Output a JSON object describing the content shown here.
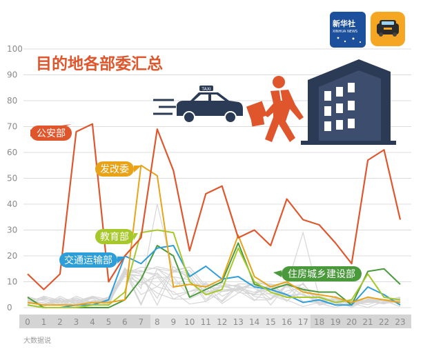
{
  "chart_data": {
    "type": "line",
    "title": "目的地各部委汇总",
    "x": [
      "0",
      "1",
      "2",
      "3",
      "4",
      "5",
      "6",
      "7",
      "8",
      "9",
      "10",
      "11",
      "12",
      "13",
      "14",
      "15",
      "16",
      "17",
      "18",
      "19",
      "20",
      "21",
      "22",
      "23"
    ],
    "ylim": [
      0,
      100
    ],
    "yticks": [
      "0",
      "10",
      "20",
      "30",
      "40",
      "50",
      "60",
      "70",
      "80",
      "90",
      "100"
    ],
    "grid": true,
    "series": [
      {
        "name": "公安部",
        "color": "#e0562c",
        "values": [
          13,
          7,
          13,
          68,
          71,
          10,
          20,
          27,
          69,
          53,
          22,
          44,
          47,
          27,
          30,
          24,
          42,
          34,
          32,
          25,
          17,
          57,
          61,
          34
        ]
      },
      {
        "name": "发改委",
        "color": "#e8a318",
        "values": [
          2,
          1,
          1,
          1,
          2,
          2,
          3,
          55,
          51,
          8,
          9,
          8,
          11,
          28,
          12,
          8,
          10,
          6,
          5,
          4,
          2,
          4,
          3,
          2
        ]
      },
      {
        "name": "教育部",
        "color": "#a6c82a",
        "values": [
          1,
          0,
          0,
          0,
          1,
          1,
          6,
          29,
          30,
          29,
          10,
          5,
          7,
          23,
          10,
          6,
          4,
          4,
          4,
          2,
          3,
          13,
          4,
          3
        ]
      },
      {
        "name": "交通运输部",
        "color": "#2e9ed8",
        "values": [
          1,
          0,
          0,
          1,
          1,
          3,
          20,
          17,
          23,
          24,
          12,
          16,
          11,
          12,
          8,
          7,
          5,
          2,
          3,
          1,
          1,
          8,
          5,
          1
        ]
      },
      {
        "name": "住房城乡建设部",
        "color": "#4a9a3c",
        "values": [
          4,
          0,
          0,
          0,
          0,
          0,
          3,
          11,
          24,
          20,
          4,
          7,
          10,
          25,
          9,
          7,
          9,
          7,
          6,
          6,
          1,
          14,
          15,
          9
        ]
      }
    ],
    "background_series_note": "many thin gray unlabeled lines"
  },
  "badges": {
    "xinhua_main": "新华社",
    "xinhua_sub": "XINHUA NEWS"
  },
  "taxi_sign": "TAXI",
  "watermark": "大数据说"
}
